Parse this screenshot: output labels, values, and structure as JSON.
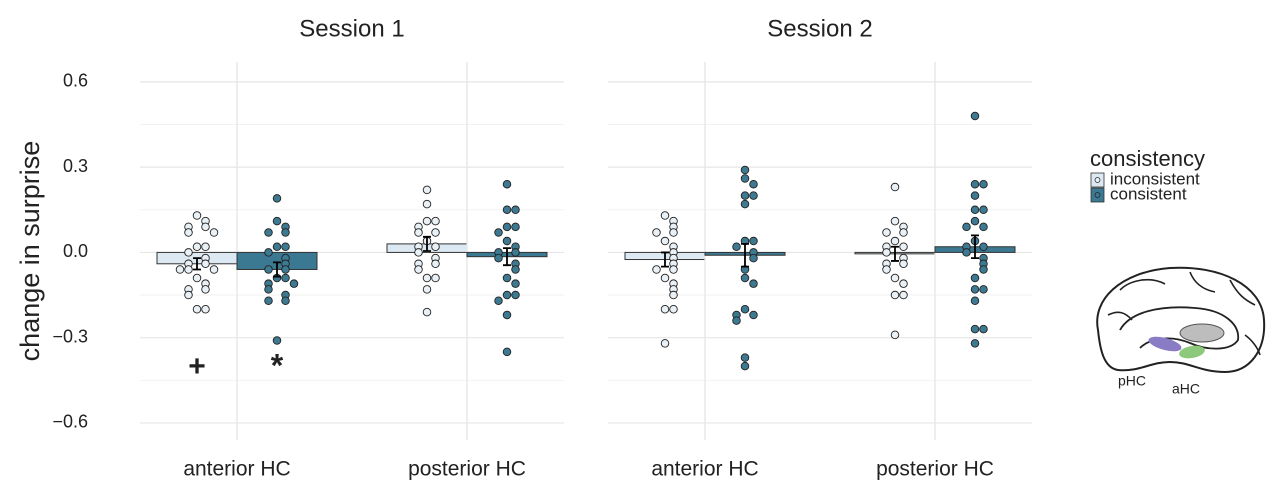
{
  "chart_data": [
    {
      "type": "bar",
      "title": "Session 1",
      "ylabel": "change in surprise",
      "categories": [
        "anterior HC",
        "posterior HC"
      ],
      "ylim": [
        -0.66,
        0.67
      ],
      "yticks": [
        {
          "value": -0.6,
          "label": "−0.6"
        },
        {
          "value": -0.3,
          "label": "−0.3"
        },
        {
          "value": 0,
          "label": "0.0"
        },
        0.3,
        0.6
      ],
      "minor_yticks": [
        -0.45,
        -0.15,
        0.15,
        0.45
      ],
      "grid": true,
      "legend_title": "consistency",
      "series": [
        {
          "name": "inconsistent",
          "color": "#dce9f2",
          "point_color": "#e9f1f6",
          "values": [
            -0.04,
            0.03
          ],
          "errors": [
            0.02,
            0.025
          ],
          "points": [
            [
              0.13,
              0.11,
              0.09,
              0.09,
              0.07,
              0.07,
              0.02,
              0.02,
              0.0,
              -0.02,
              -0.04,
              -0.04,
              -0.06,
              -0.06,
              -0.06,
              -0.09,
              -0.11,
              -0.13,
              -0.13,
              -0.15,
              -0.2,
              -0.2
            ],
            [
              0.22,
              0.17,
              0.11,
              0.11,
              0.09,
              0.07,
              0.07,
              0.04,
              0.02,
              0.02,
              0.0,
              -0.02,
              -0.04,
              -0.04,
              -0.06,
              -0.09,
              -0.09,
              -0.13,
              -0.21
            ]
          ]
        },
        {
          "name": "consistent",
          "color": "#3b7891",
          "point_color": "#3d7a92",
          "values": [
            -0.06,
            -0.015
          ],
          "errors": [
            0.025,
            0.03
          ],
          "points": [
            [
              0.19,
              0.11,
              0.09,
              0.07,
              0.07,
              0.02,
              0.02,
              0.0,
              -0.02,
              -0.04,
              -0.06,
              -0.06,
              -0.09,
              -0.09,
              -0.11,
              -0.11,
              -0.13,
              -0.15,
              -0.17,
              -0.17,
              -0.31
            ],
            [
              0.24,
              0.15,
              0.15,
              0.09,
              0.09,
              0.07,
              0.04,
              0.02,
              0.0,
              0.0,
              -0.02,
              -0.04,
              -0.06,
              -0.09,
              -0.11,
              -0.15,
              -0.15,
              -0.17,
              -0.22,
              -0.35
            ]
          ]
        }
      ],
      "annotations": [
        {
          "text": "+",
          "color": "#f5a623"
        },
        {
          "text": "*",
          "color": "#f5a623"
        }
      ]
    },
    {
      "type": "bar",
      "title": "Session 2",
      "categories": [
        "anterior HC",
        "posterior HC"
      ],
      "ylim": [
        -0.66,
        0.67
      ],
      "yticks": [
        {
          "value": -0.6,
          "label": "−0.6"
        },
        {
          "value": -0.3,
          "label": "−0.3"
        },
        {
          "value": 0,
          "label": "0.0"
        },
        0.3,
        0.6
      ],
      "minor_yticks": [
        -0.45,
        -0.15,
        0.15,
        0.45
      ],
      "grid": true,
      "series": [
        {
          "name": "inconsistent",
          "color": "#dce9f2",
          "point_color": "#e9f1f6",
          "values": [
            -0.025,
            -0.005
          ],
          "errors": [
            0.025,
            0.025
          ],
          "points": [
            [
              0.13,
              0.11,
              0.09,
              0.07,
              0.07,
              0.04,
              0.02,
              0.0,
              -0.02,
              -0.04,
              -0.06,
              -0.06,
              -0.09,
              -0.11,
              -0.13,
              -0.15,
              -0.2,
              -0.2,
              -0.32
            ],
            [
              0.23,
              0.11,
              0.09,
              0.07,
              0.07,
              0.04,
              0.02,
              0.02,
              0.0,
              -0.02,
              -0.04,
              -0.04,
              -0.06,
              -0.09,
              -0.11,
              -0.15,
              -0.15,
              -0.29
            ]
          ]
        },
        {
          "name": "consistent",
          "color": "#3b7891",
          "point_color": "#3d7a92",
          "values": [
            -0.01,
            0.02
          ],
          "errors": [
            0.04,
            0.04
          ],
          "points": [
            [
              0.29,
              0.26,
              0.24,
              0.2,
              0.2,
              0.17,
              0.04,
              0.04,
              0.02,
              0.0,
              -0.02,
              -0.06,
              -0.09,
              -0.11,
              -0.2,
              -0.22,
              -0.22,
              -0.24,
              -0.37,
              -0.4
            ],
            [
              0.48,
              0.24,
              0.24,
              0.2,
              0.15,
              0.15,
              0.11,
              0.09,
              0.09,
              0.04,
              0.02,
              0.02,
              0.0,
              -0.02,
              -0.04,
              -0.06,
              -0.09,
              -0.13,
              -0.13,
              -0.17,
              -0.27,
              -0.27,
              -0.32
            ]
          ]
        }
      ]
    }
  ],
  "inset": {
    "labels": [
      "pHC",
      "aHC"
    ]
  }
}
